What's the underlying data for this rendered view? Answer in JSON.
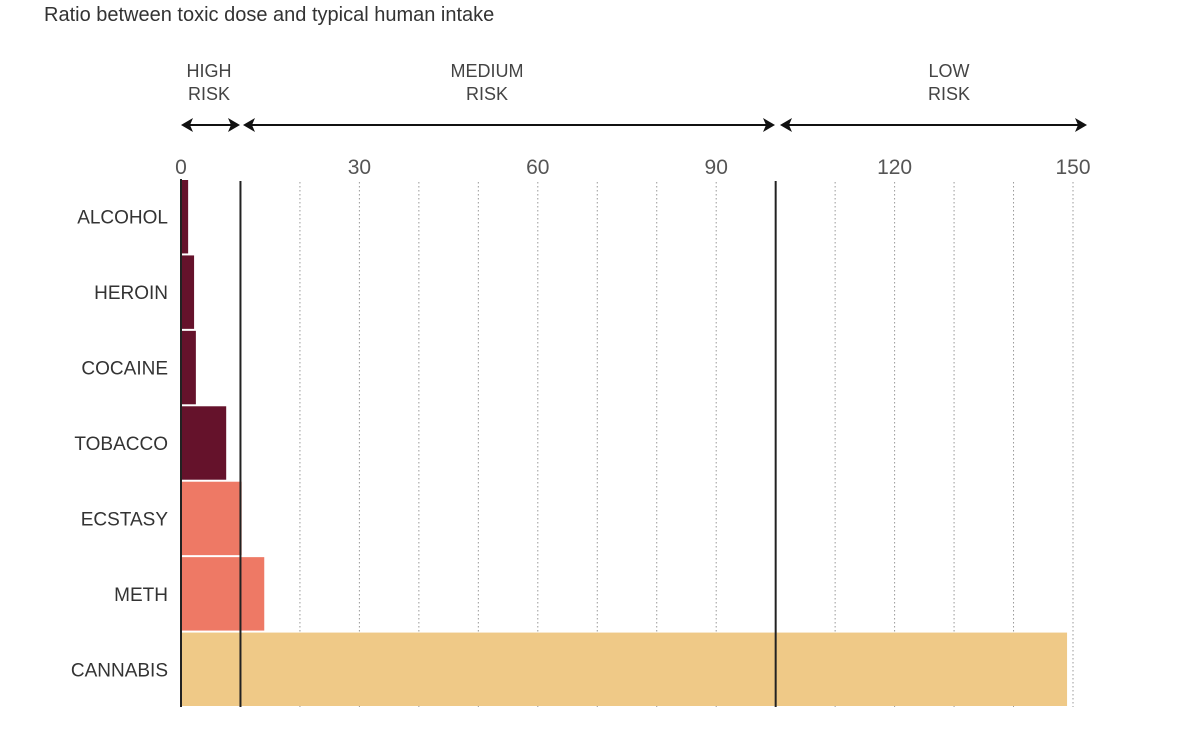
{
  "chart_data": {
    "type": "bar",
    "orientation": "horizontal",
    "title": "Ratio between toxic dose and typical human intake",
    "xlabel": "",
    "ylabel": "",
    "xlim": [
      0,
      150
    ],
    "x_ticks": [
      0,
      30,
      60,
      90,
      120,
      150
    ],
    "minor_gridlines": [
      10,
      20,
      40,
      50,
      70,
      80,
      100,
      110,
      130,
      140
    ],
    "grid": "vertical dotted every 10",
    "risk_zones": [
      {
        "label_line1": "HIGH",
        "label_line2": "RISK",
        "from": 0,
        "to": 10
      },
      {
        "label_line1": "MEDIUM",
        "label_line2": "RISK",
        "from": 10,
        "to": 100
      },
      {
        "label_line1": "LOW",
        "label_line2": "RISK",
        "from": 100,
        "to": 150
      }
    ],
    "categories": [
      "ALCOHOL",
      "HEROIN",
      "COCAINE",
      "TOBACCO",
      "ECSTASY",
      "METH",
      "CANNABIS"
    ],
    "values": [
      1.2,
      2.2,
      2.5,
      7.6,
      10.2,
      14,
      149
    ],
    "colors": [
      "#65122b",
      "#65122b",
      "#65122b",
      "#65122b",
      "#ee7965",
      "#ee7965",
      "#efc987"
    ]
  }
}
